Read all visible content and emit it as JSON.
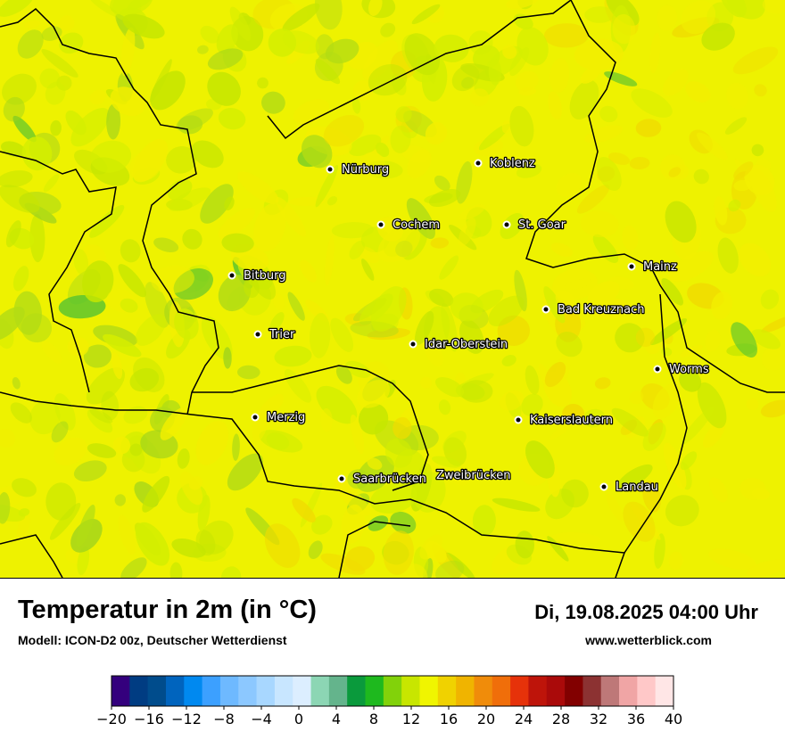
{
  "map": {
    "background_color": "#eef200",
    "patch_colors": [
      "#d4ee00",
      "#c6e600",
      "#b2dc14",
      "#9fd31c",
      "#f2ef00",
      "#f0dc00",
      "#52c231"
    ],
    "cities": [
      {
        "name": "Nürburg"
      },
      {
        "name": "Koblenz"
      },
      {
        "name": "Cochem"
      },
      {
        "name": "St. Goar"
      },
      {
        "name": "Bitburg"
      },
      {
        "name": "Mainz"
      },
      {
        "name": "Bad Kreuznach"
      },
      {
        "name": "Trier"
      },
      {
        "name": "Idar-Oberstein"
      },
      {
        "name": "Worms"
      },
      {
        "name": "Merzig"
      },
      {
        "name": "Kaiserslautern"
      },
      {
        "name": "Saarbrücken"
      },
      {
        "name": "Zweibrücken"
      },
      {
        "name": "Landau"
      }
    ]
  },
  "header": {
    "title": "Temperatur in 2m (in °C)",
    "model": "Modell: ICON-D2 00z, Deutscher Wetterdienst",
    "datetime": "Di, 19.08.2025 04:00 Uhr",
    "website": "www.wetterblick.com"
  },
  "legend": {
    "colors": [
      "#34007d",
      "#003c82",
      "#004c8c",
      "#0064be",
      "#0089f0",
      "#3ca0ff",
      "#6eb9ff",
      "#8cc8ff",
      "#a8d7ff",
      "#c8e6ff",
      "#dceeff",
      "#8cd6b4",
      "#64b48c",
      "#0a9a3c",
      "#1eb91e",
      "#82d20a",
      "#c8e600",
      "#f0f500",
      "#f0d200",
      "#f0b400",
      "#f08c0a",
      "#f06e0a",
      "#e6320a",
      "#be140a",
      "#aa0a0a",
      "#820000",
      "#8c3232",
      "#be7878",
      "#f0a5a5",
      "#ffc8c8",
      "#ffe6e6"
    ],
    "tick_labels": [
      "−20",
      "−16",
      "−12",
      "−8",
      "−4",
      "0",
      "4",
      "8",
      "12",
      "16",
      "20",
      "24",
      "28",
      "32",
      "36",
      "40"
    ]
  }
}
